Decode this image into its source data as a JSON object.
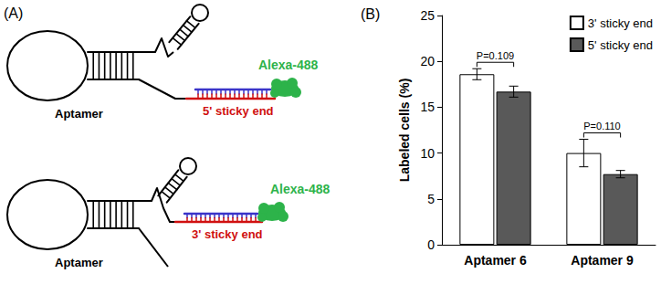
{
  "diagram": {
    "label": "(A)",
    "constructs": [
      {
        "aptamer": "Aptamer",
        "sticky_end": "5' sticky end",
        "fluorophore": "Alexa-488"
      },
      {
        "aptamer": "Aptamer",
        "sticky_end": "3' sticky end",
        "fluorophore": "Alexa-488"
      }
    ]
  },
  "chart_data": {
    "type": "bar",
    "title": "(B)",
    "y_label": "Labeled cells (%)",
    "categories": [
      "Aptamer 6",
      "Aptamer 9"
    ],
    "series": [
      {
        "name": "3' sticky end",
        "color": "#ffffff",
        "values": [
          18.6,
          10.0
        ],
        "errors": [
          0.6,
          1.5
        ]
      },
      {
        "name": "5' sticky end",
        "color": "#595959",
        "values": [
          16.7,
          7.7
        ],
        "errors": [
          0.6,
          0.4
        ]
      }
    ],
    "annotations": [
      {
        "category": "Aptamer 6",
        "text": "P=0.109"
      },
      {
        "category": "Aptamer 9",
        "text": "P=0.110"
      }
    ],
    "ylim": [
      0,
      25
    ],
    "yticks": [
      0,
      5,
      10,
      15,
      20,
      25
    ],
    "grid": false,
    "legend": "upper right",
    "data_labels": false
  }
}
